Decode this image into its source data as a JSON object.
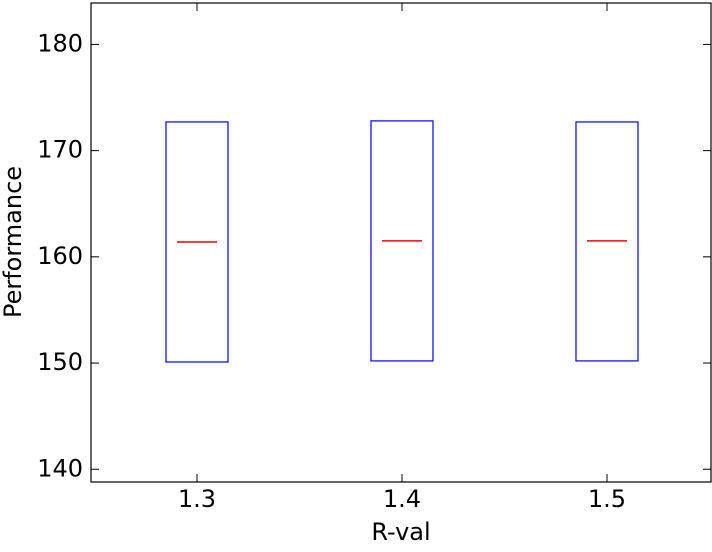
{
  "chart_data": {
    "type": "box",
    "x_label": "R-val",
    "y_label": "Performance",
    "categories": [
      "1.3",
      "1.4",
      "1.5"
    ],
    "q1": [
      150.1,
      150.2,
      150.2
    ],
    "median": [
      161.4,
      161.5,
      161.5
    ],
    "q3": [
      172.7,
      172.8,
      172.7
    ],
    "box_color": "#0000ff",
    "median_color": "#ff0000",
    "ylim": [
      138.8,
      183.9
    ],
    "yticks": [
      140,
      150,
      160,
      170,
      180
    ]
  }
}
